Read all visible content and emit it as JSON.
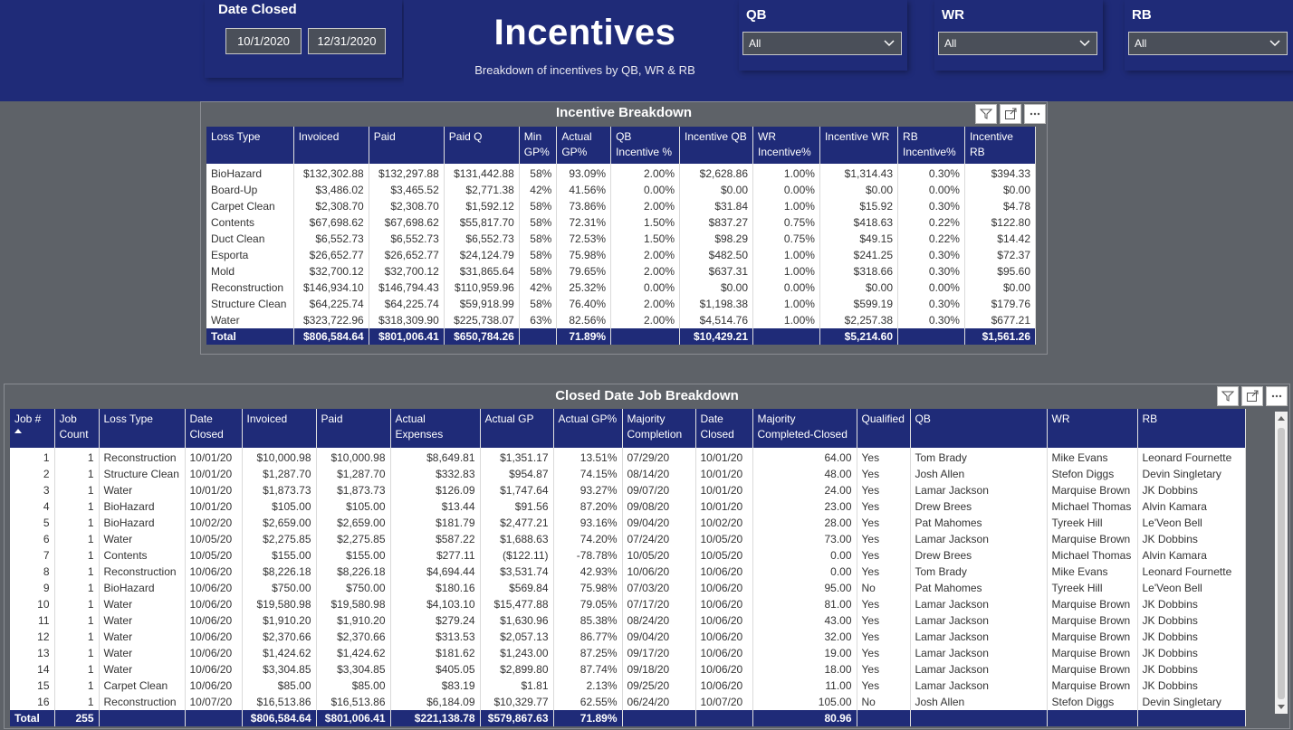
{
  "header": {
    "date_title": "Date Closed",
    "date_start": "10/1/2020",
    "date_end": "12/31/2020",
    "title": "Incentives",
    "subtitle": "Breakdown of incentives by QB, WR & RB",
    "slicers": [
      {
        "label": "QB",
        "value": "All"
      },
      {
        "label": "WR",
        "value": "All"
      },
      {
        "label": "RB",
        "value": "All"
      }
    ],
    "bg_color": "#1f2b78"
  },
  "incentive": {
    "title": "Incentive Breakdown",
    "columns": [
      "Loss Type",
      "Invoiced",
      "Paid",
      "Paid Q",
      "Min GP%",
      "Actual GP%",
      "QB Incentive %",
      "Incentive QB",
      "WR Incentive%",
      "Incentive WR",
      "RB Incentive%",
      "Incentive RB"
    ],
    "rows": [
      [
        "BioHazard",
        "$132,302.88",
        "$132,297.88",
        "$131,442.88",
        "58%",
        "93.09%",
        "2.00%",
        "$2,628.86",
        "1.00%",
        "$1,314.43",
        "0.30%",
        "$394.33"
      ],
      [
        "Board-Up",
        "$3,486.02",
        "$3,465.52",
        "$2,771.38",
        "42%",
        "41.56%",
        "0.00%",
        "$0.00",
        "0.00%",
        "$0.00",
        "0.00%",
        "$0.00"
      ],
      [
        "Carpet Clean",
        "$2,308.70",
        "$2,308.70",
        "$1,592.12",
        "58%",
        "73.86%",
        "2.00%",
        "$31.84",
        "1.00%",
        "$15.92",
        "0.30%",
        "$4.78"
      ],
      [
        "Contents",
        "$67,698.62",
        "$67,698.62",
        "$55,817.70",
        "58%",
        "72.31%",
        "1.50%",
        "$837.27",
        "0.75%",
        "$418.63",
        "0.22%",
        "$122.80"
      ],
      [
        "Duct Clean",
        "$6,552.73",
        "$6,552.73",
        "$6,552.73",
        "58%",
        "72.53%",
        "1.50%",
        "$98.29",
        "0.75%",
        "$49.15",
        "0.22%",
        "$14.42"
      ],
      [
        "Esporta",
        "$26,652.77",
        "$26,652.77",
        "$24,124.79",
        "58%",
        "75.98%",
        "2.00%",
        "$482.50",
        "1.00%",
        "$241.25",
        "0.30%",
        "$72.37"
      ],
      [
        "Mold",
        "$32,700.12",
        "$32,700.12",
        "$31,865.64",
        "58%",
        "79.65%",
        "2.00%",
        "$637.31",
        "1.00%",
        "$318.66",
        "0.30%",
        "$95.60"
      ],
      [
        "Reconstruction",
        "$146,934.10",
        "$146,794.43",
        "$110,959.96",
        "42%",
        "25.32%",
        "0.00%",
        "$0.00",
        "0.00%",
        "$0.00",
        "0.00%",
        "$0.00"
      ],
      [
        "Structure Clean",
        "$64,225.74",
        "$64,225.74",
        "$59,918.99",
        "58%",
        "76.40%",
        "2.00%",
        "$1,198.38",
        "1.00%",
        "$599.19",
        "0.30%",
        "$179.76"
      ],
      [
        "Water",
        "$323,722.96",
        "$318,309.90",
        "$225,738.07",
        "63%",
        "82.56%",
        "2.00%",
        "$4,514.76",
        "1.00%",
        "$2,257.38",
        "0.30%",
        "$677.21"
      ]
    ],
    "total": [
      "Total",
      "$806,584.64",
      "$801,006.41",
      "$650,784.26",
      "",
      "71.89%",
      "",
      "$10,429.21",
      "",
      "$5,214.60",
      "",
      "$1,561.26"
    ]
  },
  "jobs": {
    "title": "Closed Date Job Breakdown",
    "columns": [
      "Job #",
      "Job Count",
      "Loss Type",
      "Date Closed",
      "Invoiced",
      "Paid",
      "Actual Expenses",
      "Actual GP",
      "Actual GP%",
      "Majority Completion",
      "Date Closed",
      "Majority Completed-Closed",
      "Qualified",
      "QB",
      "WR",
      "RB"
    ],
    "rows": [
      [
        "1",
        "1",
        "Reconstruction",
        "10/01/20",
        "$10,000.98",
        "$10,000.98",
        "$8,649.81",
        "$1,351.17",
        "13.51%",
        "07/29/20",
        "10/01/20",
        "64.00",
        "Yes",
        "Tom Brady",
        "Mike Evans",
        "Leonard Fournette"
      ],
      [
        "2",
        "1",
        "Structure Clean",
        "10/01/20",
        "$1,287.70",
        "$1,287.70",
        "$332.83",
        "$954.87",
        "74.15%",
        "08/14/20",
        "10/01/20",
        "48.00",
        "Yes",
        "Josh Allen",
        "Stefon Diggs",
        "Devin Singletary"
      ],
      [
        "3",
        "1",
        "Water",
        "10/01/20",
        "$1,873.73",
        "$1,873.73",
        "$126.09",
        "$1,747.64",
        "93.27%",
        "09/07/20",
        "10/01/20",
        "24.00",
        "Yes",
        "Lamar Jackson",
        "Marquise Brown",
        "JK Dobbins"
      ],
      [
        "4",
        "1",
        "BioHazard",
        "10/01/20",
        "$105.00",
        "$105.00",
        "$13.44",
        "$91.56",
        "87.20%",
        "09/08/20",
        "10/01/20",
        "23.00",
        "Yes",
        "Drew Brees",
        "Michael Thomas",
        "Alvin Kamara"
      ],
      [
        "5",
        "1",
        "BioHazard",
        "10/02/20",
        "$2,659.00",
        "$2,659.00",
        "$181.79",
        "$2,477.21",
        "93.16%",
        "09/04/20",
        "10/02/20",
        "28.00",
        "Yes",
        "Pat Mahomes",
        "Tyreek Hill",
        "Le'Veon Bell"
      ],
      [
        "6",
        "1",
        "Water",
        "10/05/20",
        "$2,275.85",
        "$2,275.85",
        "$587.22",
        "$1,688.63",
        "74.20%",
        "07/24/20",
        "10/05/20",
        "73.00",
        "Yes",
        "Lamar Jackson",
        "Marquise Brown",
        "JK Dobbins"
      ],
      [
        "7",
        "1",
        "Contents",
        "10/05/20",
        "$155.00",
        "$155.00",
        "$277.11",
        "($122.11)",
        "-78.78%",
        "10/05/20",
        "10/05/20",
        "0.00",
        "Yes",
        "Drew Brees",
        "Michael Thomas",
        "Alvin Kamara"
      ],
      [
        "8",
        "1",
        "Reconstruction",
        "10/06/20",
        "$8,226.18",
        "$8,226.18",
        "$4,694.44",
        "$3,531.74",
        "42.93%",
        "10/06/20",
        "10/06/20",
        "0.00",
        "Yes",
        "Tom Brady",
        "Mike Evans",
        "Leonard Fournette"
      ],
      [
        "9",
        "1",
        "BioHazard",
        "10/06/20",
        "$750.00",
        "$750.00",
        "$180.16",
        "$569.84",
        "75.98%",
        "07/03/20",
        "10/06/20",
        "95.00",
        "No",
        "Pat Mahomes",
        "Tyreek Hill",
        "Le'Veon Bell"
      ],
      [
        "10",
        "1",
        "Water",
        "10/06/20",
        "$19,580.98",
        "$19,580.98",
        "$4,103.10",
        "$15,477.88",
        "79.05%",
        "07/17/20",
        "10/06/20",
        "81.00",
        "Yes",
        "Lamar Jackson",
        "Marquise Brown",
        "JK Dobbins"
      ],
      [
        "11",
        "1",
        "Water",
        "10/06/20",
        "$1,910.20",
        "$1,910.20",
        "$279.24",
        "$1,630.96",
        "85.38%",
        "08/24/20",
        "10/06/20",
        "43.00",
        "Yes",
        "Lamar Jackson",
        "Marquise Brown",
        "JK Dobbins"
      ],
      [
        "12",
        "1",
        "Water",
        "10/06/20",
        "$2,370.66",
        "$2,370.66",
        "$313.53",
        "$2,057.13",
        "86.77%",
        "09/04/20",
        "10/06/20",
        "32.00",
        "Yes",
        "Lamar Jackson",
        "Marquise Brown",
        "JK Dobbins"
      ],
      [
        "13",
        "1",
        "Water",
        "10/06/20",
        "$1,424.62",
        "$1,424.62",
        "$181.62",
        "$1,243.00",
        "87.25%",
        "09/17/20",
        "10/06/20",
        "19.00",
        "Yes",
        "Lamar Jackson",
        "Marquise Brown",
        "JK Dobbins"
      ],
      [
        "14",
        "1",
        "Water",
        "10/06/20",
        "$3,304.85",
        "$3,304.85",
        "$405.05",
        "$2,899.80",
        "87.74%",
        "09/18/20",
        "10/06/20",
        "18.00",
        "Yes",
        "Lamar Jackson",
        "Marquise Brown",
        "JK Dobbins"
      ],
      [
        "15",
        "1",
        "Carpet Clean",
        "10/06/20",
        "$85.00",
        "$85.00",
        "$83.19",
        "$1.81",
        "2.13%",
        "09/25/20",
        "10/06/20",
        "11.00",
        "Yes",
        "Lamar Jackson",
        "Marquise Brown",
        "JK Dobbins"
      ],
      [
        "16",
        "1",
        "Reconstruction",
        "10/07/20",
        "$16,513.86",
        "$16,513.86",
        "$6,184.09",
        "$10,329.77",
        "62.55%",
        "06/24/20",
        "10/07/20",
        "105.00",
        "No",
        "Josh Allen",
        "Stefon Diggs",
        "Devin Singletary"
      ]
    ],
    "total": [
      "Total",
      "255",
      "",
      "",
      "$806,584.64",
      "$801,006.41",
      "$221,138.78",
      "$579,867.63",
      "71.89%",
      "",
      "",
      "80.96",
      "",
      "",
      "",
      ""
    ]
  },
  "icons": {
    "filter": "filter-icon",
    "focus": "focus-mode-icon",
    "more": "more-options-icon",
    "sort": "sort-ascending-icon",
    "dropdown": "chevron-down-icon"
  }
}
